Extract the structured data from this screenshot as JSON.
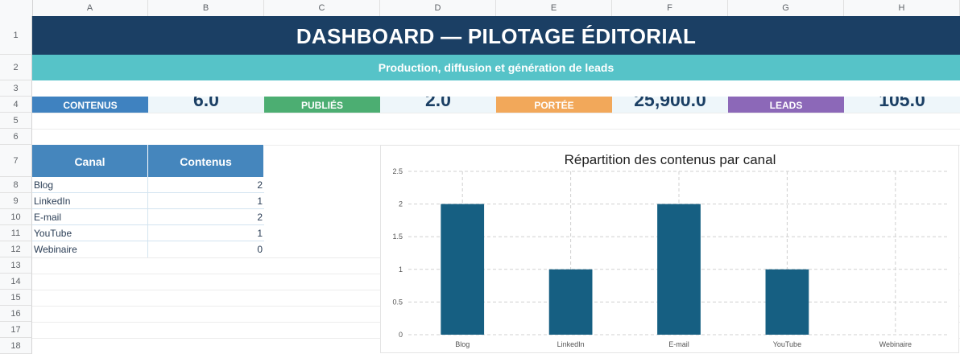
{
  "sheet": {
    "columns": [
      "A",
      "B",
      "C",
      "D",
      "E",
      "F",
      "G",
      "H"
    ],
    "rows": [
      "1",
      "2",
      "3",
      "4",
      "5",
      "6",
      "7",
      "8",
      "9",
      "10",
      "11",
      "12",
      "13",
      "14",
      "15",
      "16",
      "17",
      "18"
    ]
  },
  "header": {
    "title": "DASHBOARD — PILOTAGE ÉDITORIAL",
    "subtitle": "Production, diffusion et génération de leads"
  },
  "kpis": [
    {
      "label": "CONTENUS",
      "value": "6.0",
      "color": "#3f82c0"
    },
    {
      "label": "PUBLIÉS",
      "value": "2.0",
      "color": "#4cae72"
    },
    {
      "label": "PORTÉE",
      "value": "25,900.0",
      "color": "#f2a85a"
    },
    {
      "label": "LEADS",
      "value": "105.0",
      "color": "#8c68b8"
    }
  ],
  "table": {
    "headers": [
      "Canal",
      "Contenus"
    ],
    "rows": [
      {
        "canal": "Blog",
        "contenus": "2"
      },
      {
        "canal": "LinkedIn",
        "contenus": "1"
      },
      {
        "canal": "E-mail",
        "contenus": "2"
      },
      {
        "canal": "YouTube",
        "contenus": "1"
      },
      {
        "canal": "Webinaire",
        "contenus": "0"
      }
    ]
  },
  "chart_data": {
    "type": "bar",
    "title": "Répartition des contenus par canal",
    "categories": [
      "Blog",
      "LinkedIn",
      "E-mail",
      "YouTube",
      "Webinaire"
    ],
    "values": [
      2,
      1,
      2,
      1,
      0
    ],
    "ylim": [
      0,
      2.5
    ],
    "yticks": [
      "0",
      "0.5",
      "1",
      "1.5",
      "2",
      "2.5"
    ],
    "grid": true,
    "bar_color": "#165f82",
    "xlabel": "",
    "ylabel": ""
  }
}
